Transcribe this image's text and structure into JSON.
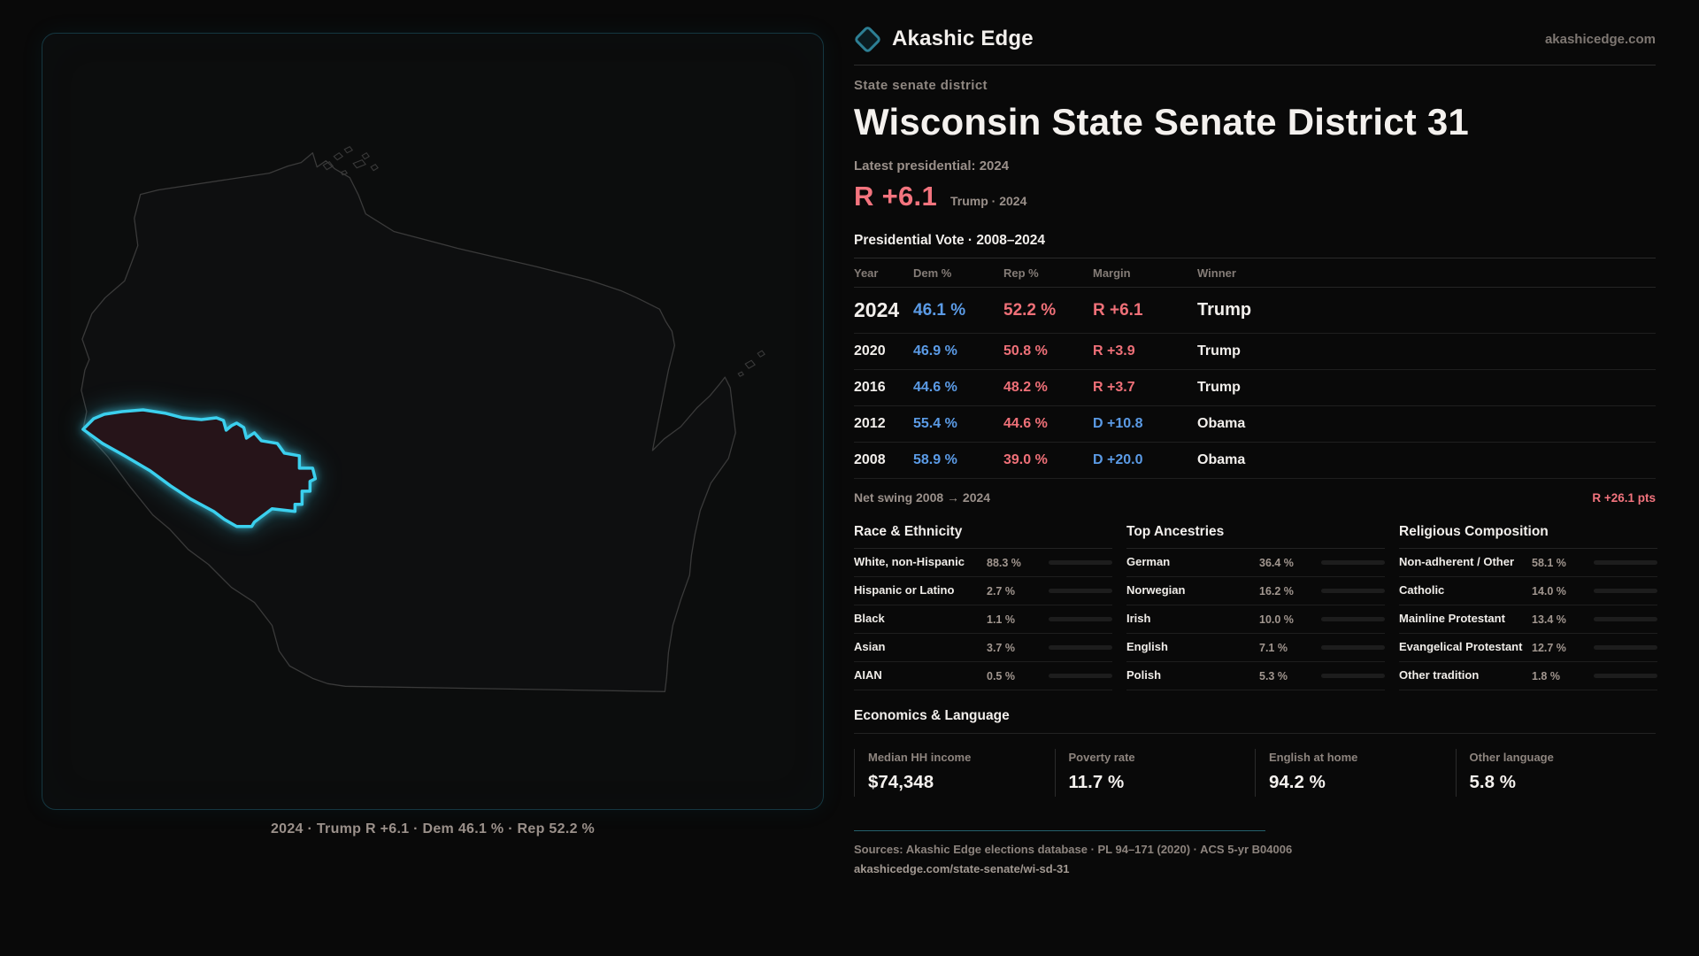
{
  "brand": {
    "name": "Akashic Edge",
    "domain": "akashicedge.com"
  },
  "page": {
    "kicker": "State senate district",
    "title": "Wisconsin State Senate District 31",
    "context_label": "Latest presidential: 2024",
    "headline_margin": "R +6.1",
    "headline_detail": "Trump · 2024"
  },
  "map": {
    "caption": "2024 · Trump R +6.1 · Dem 46.1 % · Rep 52.2 %"
  },
  "chart_data": {
    "type": "table",
    "title": "Presidential Vote · 2008–2024",
    "columns": [
      "Year",
      "Dem %",
      "Rep %",
      "Margin",
      "Winner"
    ],
    "rows": [
      {
        "year": "2024",
        "dem": "46.1 %",
        "rep": "52.2 %",
        "margin": "R +6.1",
        "winner": "Trump",
        "margin_color": "#ef7078"
      },
      {
        "year": "2020",
        "dem": "46.9 %",
        "rep": "50.8 %",
        "margin": "R +3.9",
        "winner": "Trump",
        "margin_color": "#ef7078"
      },
      {
        "year": "2016",
        "dem": "44.6 %",
        "rep": "48.2 %",
        "margin": "R +3.7",
        "winner": "Trump",
        "margin_color": "#ef7078"
      },
      {
        "year": "2012",
        "dem": "55.4 %",
        "rep": "44.6 %",
        "margin": "D +10.8",
        "winner": "Obama",
        "margin_color": "#5b9be6"
      },
      {
        "year": "2008",
        "dem": "58.9 %",
        "rep": "39.0 %",
        "margin": "D +20.0",
        "winner": "Obama",
        "margin_color": "#5b9be6"
      }
    ],
    "net_swing_label": "Net swing 2008 → 2024",
    "net_swing_value": "R +26.1 pts"
  },
  "race": {
    "title": "Race & Ethnicity",
    "items": [
      {
        "label": "White, non-Hispanic",
        "value": "88.3 %",
        "pct": 88.3,
        "color": "#8d9cb5"
      },
      {
        "label": "Hispanic or Latino",
        "value": "2.7 %",
        "pct": 2.7,
        "color": "#e89b2d"
      },
      {
        "label": "Black",
        "value": "1.1 %",
        "pct": 1.1,
        "color": "#8c7ff0"
      },
      {
        "label": "Asian",
        "value": "3.7 %",
        "pct": 3.7,
        "color": "#2ec487"
      },
      {
        "label": "AIAN",
        "value": "0.5 %",
        "pct": 0.5,
        "color": "#3a3a3a"
      }
    ]
  },
  "ancestries": {
    "title": "Top Ancestries",
    "items": [
      {
        "label": "German",
        "value": "36.4 %",
        "pct": 36.4,
        "color": "#8ba3c4"
      },
      {
        "label": "Norwegian",
        "value": "16.2 %",
        "pct": 16.2,
        "color": "#8ba3c4"
      },
      {
        "label": "Irish",
        "value": "10.0 %",
        "pct": 10.0,
        "color": "#8ba3c4"
      },
      {
        "label": "English",
        "value": "7.1 %",
        "pct": 7.1,
        "color": "#8ba3c4"
      },
      {
        "label": "Polish",
        "value": "5.3 %",
        "pct": 5.3,
        "color": "#8ba3c4"
      }
    ]
  },
  "religion": {
    "title": "Religious Composition",
    "items": [
      {
        "label": "Non-adherent / Other",
        "value": "58.1 %",
        "pct": 58.1,
        "color": "#6f7a8e"
      },
      {
        "label": "Catholic",
        "value": "14.0 %",
        "pct": 14.0,
        "color": "#e8b62e"
      },
      {
        "label": "Mainline Protestant",
        "value": "13.4 %",
        "pct": 13.4,
        "color": "#4d8fe3"
      },
      {
        "label": "Evangelical Protestant",
        "value": "12.7 %",
        "pct": 12.7,
        "color": "#e0606a"
      },
      {
        "label": "Other tradition",
        "value": "1.8 %",
        "pct": 1.8,
        "color": "#d8d8d8"
      }
    ]
  },
  "economics": {
    "title": "Economics & Language",
    "stats": [
      {
        "label": "Median HH income",
        "value": "$74,348"
      },
      {
        "label": "Poverty rate",
        "value": "11.7 %"
      },
      {
        "label": "English at home",
        "value": "94.2 %"
      },
      {
        "label": "Other language",
        "value": "5.8 %"
      }
    ]
  },
  "footer": {
    "sources": "Sources: Akashic Edge elections database · PL 94–171 (2020) · ACS 5-yr B04006",
    "url": "akashicedge.com/state-senate/wi-sd-31"
  }
}
